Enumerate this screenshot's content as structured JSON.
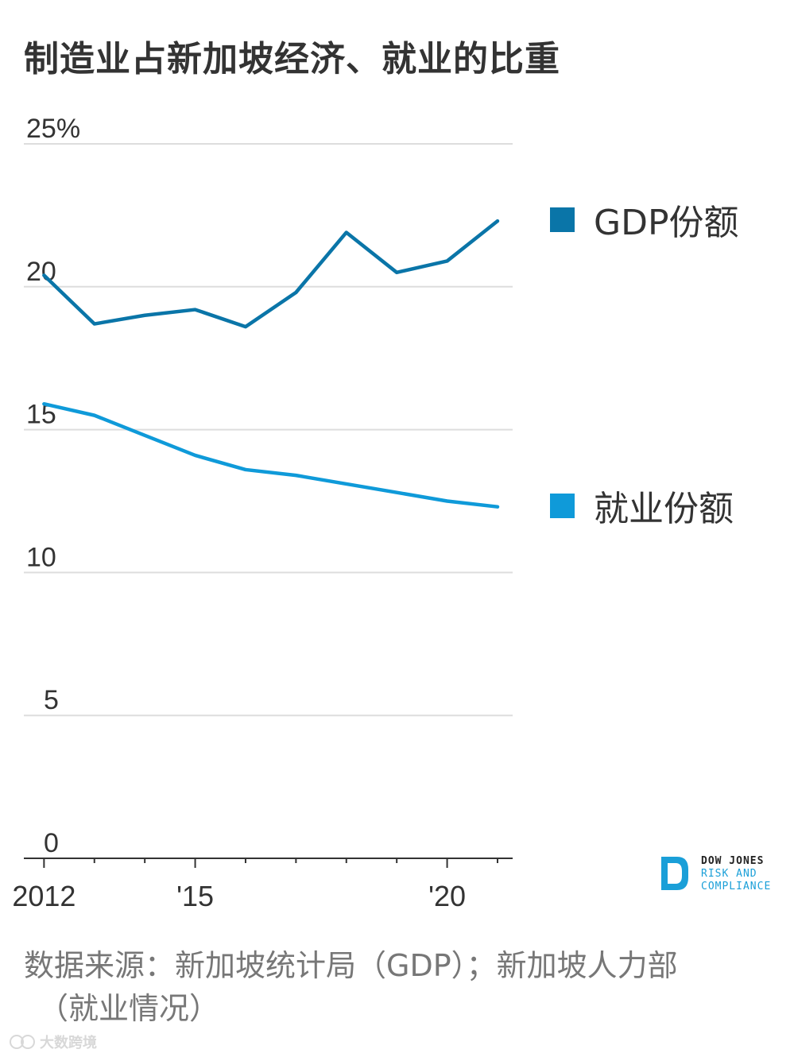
{
  "title": "制造业占新加坡经济、就业的比重",
  "chart_data": {
    "type": "line",
    "title": "制造业占新加坡经济、就业的比重",
    "x": [
      2012,
      2013,
      2014,
      2015,
      2016,
      2017,
      2018,
      2019,
      2020,
      2021
    ],
    "x_tick_labels": [
      {
        "value": 2012,
        "label": "2012"
      },
      {
        "value": 2015,
        "label": "'15"
      },
      {
        "value": 2020,
        "label": "'20"
      }
    ],
    "y_tick_labels": [
      {
        "value": 25,
        "label": "25%"
      },
      {
        "value": 20,
        "label": "20"
      },
      {
        "value": 15,
        "label": "15"
      },
      {
        "value": 10,
        "label": "10"
      },
      {
        "value": 5,
        "label": "5"
      },
      {
        "value": 0,
        "label": "0"
      }
    ],
    "ylim": [
      0,
      25
    ],
    "xlim": [
      2011.6,
      2021.3
    ],
    "grid": true,
    "series": [
      {
        "name": "GDP份额",
        "color": "#0a75a8",
        "values": [
          20.4,
          18.7,
          19.0,
          19.2,
          18.6,
          19.8,
          21.9,
          20.5,
          20.9,
          22.3
        ]
      },
      {
        "name": "就业份额",
        "color": "#0f9ad9",
        "values": [
          15.9,
          15.5,
          14.8,
          14.1,
          13.6,
          13.4,
          13.1,
          12.8,
          12.5,
          12.3
        ]
      }
    ],
    "legend": "right"
  },
  "legend": [
    {
      "label": "GDP份额",
      "color": "#0a75a8"
    },
    {
      "label": "就业份额",
      "color": "#0f9ad9"
    }
  ],
  "source_line1": "数据来源：新加坡统计局（GDP）；新加坡人力部",
  "source_line2": "（就业情况）",
  "logo": {
    "line1": "DOW JONES",
    "line2": "RISK AND",
    "line3": "COMPLIANCE"
  },
  "watermark": "大数跨境"
}
